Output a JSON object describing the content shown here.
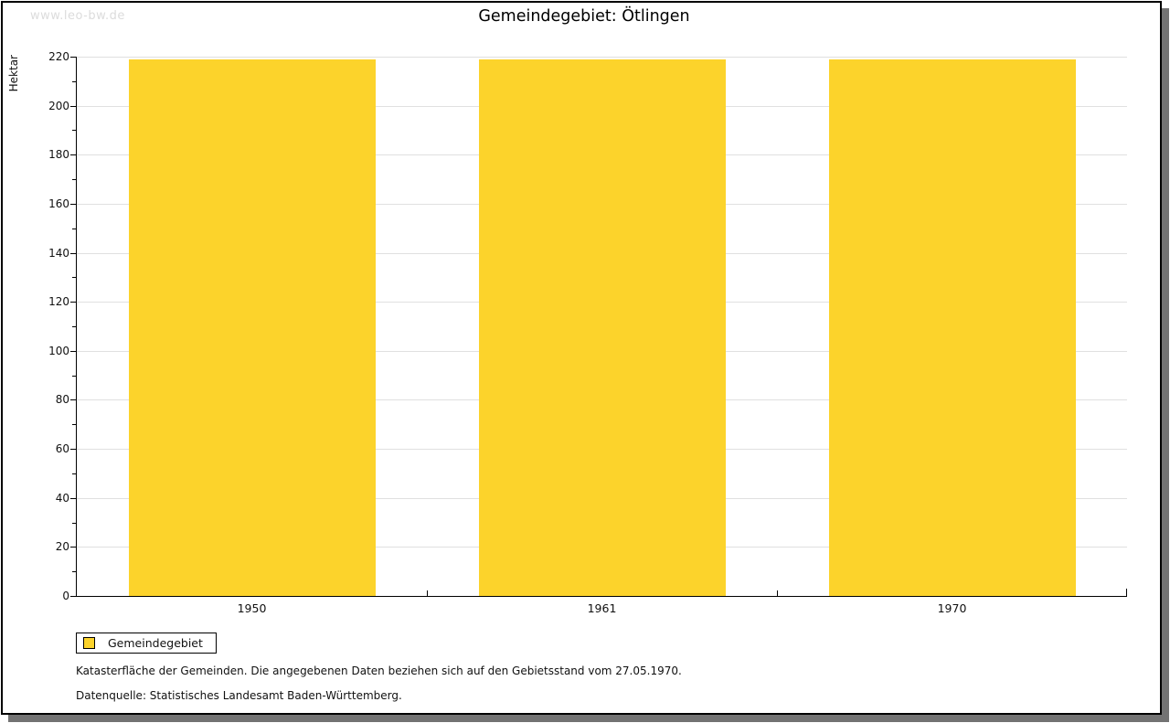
{
  "watermark": "www.leo-bw.de",
  "title": "Gemeindegebiet: Ötlingen",
  "chart_data": {
    "type": "bar",
    "title": "Gemeindegebiet: Ötlingen",
    "categories": [
      "1950",
      "1961",
      "1970"
    ],
    "values": [
      219,
      219,
      219
    ],
    "xlabel": "",
    "ylabel": "Hektar",
    "ylim": [
      0,
      220
    ],
    "yticks": [
      0,
      20,
      40,
      60,
      80,
      100,
      120,
      140,
      160,
      180,
      200,
      220
    ],
    "minor_tick_step": 10,
    "grid": true,
    "bar_color": "#fcd32b",
    "gridline_color": "#e0e0e0",
    "legend_position": "bottom-left",
    "legend": [
      {
        "label": "Gemeindegebiet",
        "color": "#fcd32b"
      }
    ]
  },
  "footnotes": [
    "Katasterfläche der Gemeinden. Die angegebenen Daten beziehen sich auf den Gebietsstand vom 27.05.1970.",
    "Datenquelle: Statistisches Landesamt Baden-Württemberg."
  ],
  "colors": {
    "bar": "#fcd32b",
    "gridline": "#e0e0e0",
    "frame_border": "#000000",
    "frame_shadow": "#737373",
    "watermark": "#dcdcdc",
    "text": "#111111"
  }
}
